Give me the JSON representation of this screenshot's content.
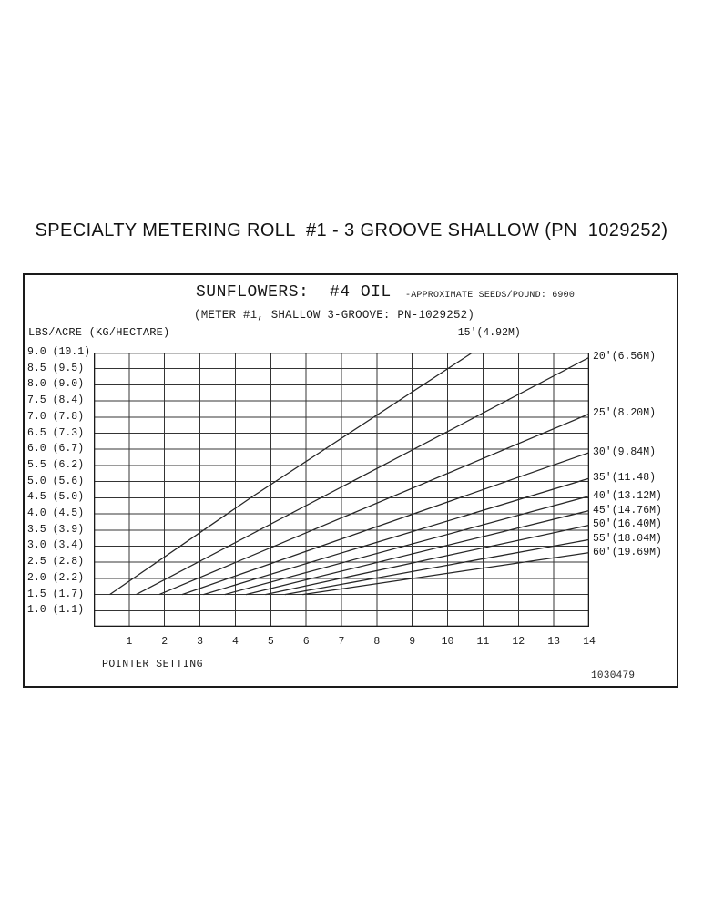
{
  "page": {
    "title": "SPECIALTY METERING ROLL  #1 - 3 GROOVE SHALLOW (PN  1029252)",
    "plot_number": "1030479"
  },
  "chart_data": {
    "type": "line",
    "title": "SUNFLOWERS:  #4 OIL",
    "title_note": "-APPROXIMATE SEEDS/POUND: 6900",
    "subtitle": "(METER #1, SHALLOW 3-GROOVE: PN-1029252)",
    "ylabel": "LBS/ACRE (KG/HECTARE)",
    "xlabel": "POINTER SETTING",
    "xlim": [
      0,
      14
    ],
    "ylim": [
      0.5,
      9.0
    ],
    "grid": true,
    "legend_position": "right-of-line-ends",
    "x_ticks": [
      1,
      2,
      3,
      4,
      5,
      6,
      7,
      8,
      9,
      10,
      11,
      12,
      13,
      14
    ],
    "y_ticks": [
      {
        "value": 9.0,
        "label": "9.0 (10.1)"
      },
      {
        "value": 8.5,
        "label": "8.5 (9.5)"
      },
      {
        "value": 8.0,
        "label": "8.0 (9.0)"
      },
      {
        "value": 7.5,
        "label": "7.5 (8.4)"
      },
      {
        "value": 7.0,
        "label": "7.0 (7.8)"
      },
      {
        "value": 6.5,
        "label": "6.5 (7.3)"
      },
      {
        "value": 6.0,
        "label": "6.0 (6.7)"
      },
      {
        "value": 5.5,
        "label": "5.5 (6.2)"
      },
      {
        "value": 5.0,
        "label": "5.0 (5.6)"
      },
      {
        "value": 4.5,
        "label": "4.5 (5.0)"
      },
      {
        "value": 4.0,
        "label": "4.0 (4.5)"
      },
      {
        "value": 3.5,
        "label": "3.5 (3.9)"
      },
      {
        "value": 3.0,
        "label": "3.0 (3.4)"
      },
      {
        "value": 2.5,
        "label": "2.5 (2.8)"
      },
      {
        "value": 2.0,
        "label": "2.0 (2.2)"
      },
      {
        "value": 1.5,
        "label": "1.5 (1.7)"
      },
      {
        "value": 1.0,
        "label": "1.0 (1.1)"
      }
    ],
    "series": [
      {
        "name": "15'(4.92M)",
        "row_spacing_ft": 15,
        "label_position": "top",
        "points": [
          [
            0.45,
            1.5
          ],
          [
            4.5,
            4.55
          ],
          [
            10.7,
            9.0
          ]
        ]
      },
      {
        "name": "20'(6.56M)",
        "row_spacing_ft": 20,
        "label_position": "right",
        "points": [
          [
            1.2,
            1.5
          ],
          [
            14,
            8.85
          ]
        ]
      },
      {
        "name": "25'(8.20M)",
        "row_spacing_ft": 25,
        "label_position": "right",
        "points": [
          [
            1.85,
            1.5
          ],
          [
            14,
            7.1
          ]
        ]
      },
      {
        "name": "30'(9.84M)",
        "row_spacing_ft": 30,
        "label_position": "right",
        "points": [
          [
            2.5,
            1.5
          ],
          [
            14,
            5.9
          ]
        ]
      },
      {
        "name": "35'(11.48)",
        "row_spacing_ft": 35,
        "label_position": "right",
        "points": [
          [
            3.1,
            1.5
          ],
          [
            14,
            5.1
          ]
        ]
      },
      {
        "name": "40'(13.12M)",
        "row_spacing_ft": 40,
        "label_position": "right",
        "points": [
          [
            3.7,
            1.5
          ],
          [
            14,
            4.55
          ]
        ]
      },
      {
        "name": "45'(14.76M)",
        "row_spacing_ft": 45,
        "label_position": "right",
        "points": [
          [
            4.3,
            1.5
          ],
          [
            14,
            4.1
          ]
        ]
      },
      {
        "name": "50'(16.40M)",
        "row_spacing_ft": 50,
        "label_position": "right",
        "points": [
          [
            4.85,
            1.5
          ],
          [
            14,
            3.65
          ]
        ]
      },
      {
        "name": "55'(18.04M)",
        "row_spacing_ft": 55,
        "label_position": "right",
        "points": [
          [
            5.4,
            1.5
          ],
          [
            14,
            3.2
          ]
        ]
      },
      {
        "name": "60'(19.69M)",
        "row_spacing_ft": 60,
        "label_position": "right",
        "points": [
          [
            5.9,
            1.5
          ],
          [
            14,
            2.8
          ]
        ]
      }
    ],
    "colors": {
      "line": "#262626",
      "grid": "#343434",
      "border": "#1a1a1a",
      "text": "#161616"
    }
  }
}
